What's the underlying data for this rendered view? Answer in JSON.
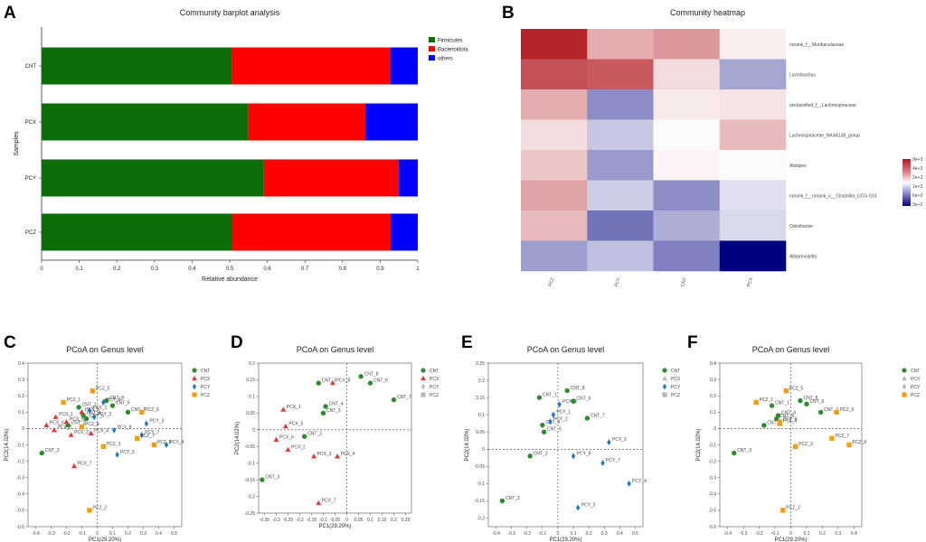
{
  "panels": [
    "A",
    "B",
    "C",
    "D",
    "E",
    "F"
  ],
  "chart_data": [
    {
      "type": "bar",
      "panel": "A",
      "title": "Community barplot analysis",
      "xlabel": "Relative abundance",
      "ylabel": "Samples",
      "xlim": [
        0,
        1
      ],
      "xticks": [
        "0",
        "0.1",
        "0.2",
        "0.3",
        "0.4",
        "0.5",
        "0.6",
        "0.7",
        "0.8",
        "0.9",
        "1"
      ],
      "categories": [
        "CNT",
        "PCX",
        "PCY",
        "PCZ"
      ],
      "series": [
        {
          "name": "Firmicutes",
          "color": "#0b6e0b",
          "values": [
            0.505,
            0.549,
            0.591,
            0.506
          ]
        },
        {
          "name": "Bacteroidota",
          "color": "#ff0000",
          "values": [
            0.422,
            0.312,
            0.358,
            0.422
          ]
        },
        {
          "name": "others",
          "color": "#0000ff",
          "values": [
            0.073,
            0.139,
            0.051,
            0.072
          ]
        }
      ]
    },
    {
      "type": "heatmap",
      "panel": "B",
      "title": "Community heatmap",
      "columns": [
        "PCZ",
        "PCY",
        "CNT",
        "PCX"
      ],
      "rows": [
        "norank_f__Muribaculaceae",
        "Lactobacillus",
        "unclassified_f__Lachnospiraceae",
        "Lachnospiraceae_NK4A136_group",
        "Alistipes",
        "norank_f__norank_o__Clostridia_UCG-014",
        "Odoribacter",
        "Alloprevotella"
      ],
      "values": [
        [
          0.95,
          0.35,
          0.45,
          0.08
        ],
        [
          0.75,
          0.72,
          0.15,
          -0.35
        ],
        [
          0.35,
          -0.45,
          0.1,
          0.12
        ],
        [
          0.15,
          -0.22,
          0.02,
          0.3
        ],
        [
          0.25,
          -0.4,
          0.05,
          0.02
        ],
        [
          0.4,
          -0.2,
          -0.45,
          -0.12
        ],
        [
          0.3,
          -0.55,
          -0.32,
          -0.15
        ],
        [
          -0.38,
          -0.25,
          -0.5,
          -1.0
        ]
      ],
      "colorbar_labels": [
        "9e+3",
        "4e+3",
        "2e+3",
        "1e+3",
        "6e+2",
        "3e+2"
      ]
    },
    {
      "type": "scatter",
      "panel": "C",
      "title": "PCoA on Genus level",
      "xlabel": "PC1(29.20%)",
      "ylabel": "PC2(14.02%)",
      "xlim": [
        -0.45,
        0.55
      ],
      "ylim": [
        -0.6,
        0.4
      ],
      "xticks": [
        -0.4,
        -0.3,
        -0.2,
        -0.1,
        0,
        0.1,
        0.2,
        0.3,
        0.4,
        0.5
      ],
      "yticks": [
        0.4,
        0.3,
        0.2,
        0.1,
        0,
        -0.1,
        -0.2,
        -0.3,
        -0.4,
        -0.5,
        -0.6
      ],
      "legend": [
        "CNT",
        "PCX",
        "PCY",
        "PCZ"
      ],
      "points": [
        {
          "label": "CNT_1",
          "group": "CNT",
          "x": -0.12,
          "y": 0.13
        },
        {
          "label": "CNT_2",
          "group": "CNT",
          "x": -0.19,
          "y": 0.02
        },
        {
          "label": "CNT_3",
          "group": "CNT",
          "x": -0.36,
          "y": -0.15
        },
        {
          "label": "CNT_4",
          "group": "CNT",
          "x": -0.09,
          "y": 0.08
        },
        {
          "label": "CNT_5",
          "group": "CNT",
          "x": -0.07,
          "y": 0.06
        },
        {
          "label": "CNT_6",
          "group": "CNT",
          "x": 0.1,
          "y": 0.14
        },
        {
          "label": "CNT_7",
          "group": "CNT",
          "x": 0.2,
          "y": 0.1
        },
        {
          "label": "CNT_8",
          "group": "CNT",
          "x": 0.06,
          "y": 0.17
        },
        {
          "label": "PCX_1",
          "group": "PCX",
          "x": -0.27,
          "y": 0.07
        },
        {
          "label": "PCX_2",
          "group": "PCX",
          "x": -0.28,
          "y": -0.01
        },
        {
          "label": "PCX_3",
          "group": "PCX",
          "x": -0.17,
          "y": -0.04
        },
        {
          "label": "PCX_4",
          "group": "PCX",
          "x": -0.04,
          "y": -0.03
        },
        {
          "label": "PCX_5",
          "group": "PCX",
          "x": -0.2,
          "y": 0.04
        },
        {
          "label": "PCX_6",
          "group": "PCX",
          "x": -0.33,
          "y": 0.02
        },
        {
          "label": "PCX_7",
          "group": "PCX",
          "x": -0.15,
          "y": -0.23
        },
        {
          "label": "PCX_8",
          "group": "PCX",
          "x": -0.1,
          "y": 0.1
        },
        {
          "label": "PCY_1",
          "group": "PCY",
          "x": -0.05,
          "y": 0.11
        },
        {
          "label": "PCY_2",
          "group": "PCY",
          "x": -0.02,
          "y": 0.07
        },
        {
          "label": "PCY_3",
          "group": "PCY",
          "x": 0.32,
          "y": 0.03
        },
        {
          "label": "PCY_4",
          "group": "PCY",
          "x": 0.45,
          "y": -0.1
        },
        {
          "label": "PCY_5",
          "group": "PCY",
          "x": 0.13,
          "y": -0.16
        },
        {
          "label": "PCY_6",
          "group": "PCY",
          "x": 0.04,
          "y": 0.16
        },
        {
          "label": "PCY_7",
          "group": "PCY",
          "x": 0.29,
          "y": -0.04
        },
        {
          "label": "PCY_8",
          "group": "PCY",
          "x": 0.11,
          "y": -0.01
        },
        {
          "label": "PCZ_1",
          "group": "PCZ",
          "x": -0.22,
          "y": 0.16
        },
        {
          "label": "PCZ_2",
          "group": "PCZ",
          "x": -0.05,
          "y": -0.5
        },
        {
          "label": "PCZ_3",
          "group": "PCZ",
          "x": 0.04,
          "y": -0.11
        },
        {
          "label": "PCZ_4",
          "group": "PCZ",
          "x": -0.1,
          "y": 0.01
        },
        {
          "label": "PCZ_5",
          "group": "PCZ",
          "x": -0.03,
          "y": 0.23
        },
        {
          "label": "PCZ_6",
          "group": "PCZ",
          "x": 0.29,
          "y": 0.1
        },
        {
          "label": "PCZ_7",
          "group": "PCZ",
          "x": 0.26,
          "y": -0.06
        },
        {
          "label": "PCZ_8",
          "group": "PCZ",
          "x": 0.37,
          "y": -0.1
        }
      ]
    },
    {
      "type": "scatter",
      "panel": "D",
      "title": "PCoA on Genus level",
      "xlabel": "PC1(29.20%)",
      "ylabel": "PC2(14.02%)",
      "xlim": [
        -0.375,
        0.275
      ],
      "ylim": [
        -0.25,
        0.2
      ],
      "xticks": [
        -0.35,
        -0.3,
        -0.25,
        -0.2,
        -0.15,
        -0.1,
        -0.05,
        0,
        0.05,
        0.1,
        0.15,
        0.2,
        0.25
      ],
      "yticks": [
        0.2,
        0.15,
        0.1,
        0.05,
        0,
        -0.05,
        -0.1,
        -0.15,
        -0.2,
        -0.25
      ],
      "legend": [
        "CNT",
        "PCX",
        "PCY",
        "PCZ"
      ],
      "points": [
        {
          "label": "CNT_1",
          "group": "CNT",
          "x": -0.12,
          "y": 0.14
        },
        {
          "label": "CNT_2",
          "group": "CNT",
          "x": -0.18,
          "y": -0.02
        },
        {
          "label": "CNT_3",
          "group": "CNT",
          "x": -0.36,
          "y": -0.15
        },
        {
          "label": "CNT_4",
          "group": "CNT",
          "x": -0.09,
          "y": 0.07
        },
        {
          "label": "CNT_5",
          "group": "CNT",
          "x": -0.1,
          "y": 0.05
        },
        {
          "label": "CNT_6",
          "group": "CNT",
          "x": 0.1,
          "y": 0.14
        },
        {
          "label": "CNT_7",
          "group": "CNT",
          "x": 0.2,
          "y": 0.09
        },
        {
          "label": "CNT_8",
          "group": "CNT",
          "x": 0.06,
          "y": 0.16
        },
        {
          "label": "PCX_1",
          "group": "PCX",
          "x": -0.27,
          "y": 0.06
        },
        {
          "label": "PCX_2",
          "group": "PCX",
          "x": -0.25,
          "y": -0.06
        },
        {
          "label": "PCX_3",
          "group": "PCX",
          "x": -0.14,
          "y": -0.08
        },
        {
          "label": "PCX_4",
          "group": "PCX",
          "x": -0.04,
          "y": -0.08
        },
        {
          "label": "PCX_5",
          "group": "PCX",
          "x": -0.26,
          "y": 0.01
        },
        {
          "label": "PCX_6",
          "group": "PCX",
          "x": -0.3,
          "y": -0.03
        },
        {
          "label": "PCX_7",
          "group": "PCX",
          "x": -0.12,
          "y": -0.22
        },
        {
          "label": "PCX_8",
          "group": "PCX",
          "x": -0.06,
          "y": 0.14
        }
      ]
    },
    {
      "type": "scatter",
      "panel": "E",
      "title": "PCoA on Genus level",
      "xlabel": "PC1(29.20%)",
      "ylabel": "PC2(14.02%)",
      "xlim": [
        -0.45,
        0.55
      ],
      "ylim": [
        -0.225,
        0.25
      ],
      "xticks": [
        -0.4,
        -0.3,
        -0.2,
        -0.1,
        0,
        0.1,
        0.2,
        0.3,
        0.4,
        0.5
      ],
      "yticks": [
        0.25,
        0.2,
        0.15,
        0.1,
        0.05,
        0,
        -0.05,
        -0.1,
        -0.15,
        -0.2
      ],
      "legend": [
        "CNT",
        "PCX",
        "PCY",
        "PCZ"
      ],
      "points": [
        {
          "label": "CNT_1",
          "group": "CNT",
          "x": -0.12,
          "y": 0.15
        },
        {
          "label": "CNT_2",
          "group": "CNT",
          "x": -0.18,
          "y": -0.02
        },
        {
          "label": "CNT_3",
          "group": "CNT",
          "x": -0.36,
          "y": -0.15
        },
        {
          "label": "CNT_4",
          "group": "CNT",
          "x": -0.1,
          "y": 0.07
        },
        {
          "label": "CNT_5",
          "group": "CNT",
          "x": -0.09,
          "y": 0.05
        },
        {
          "label": "CNT_6",
          "group": "CNT",
          "x": 0.1,
          "y": 0.14
        },
        {
          "label": "CNT_7",
          "group": "CNT",
          "x": 0.19,
          "y": 0.09
        },
        {
          "label": "CNT_8",
          "group": "CNT",
          "x": 0.06,
          "y": 0.17
        },
        {
          "label": "PCY_1",
          "group": "PCY",
          "x": -0.03,
          "y": 0.1
        },
        {
          "label": "PCY_2",
          "group": "PCY",
          "x": -0.05,
          "y": 0.08
        },
        {
          "label": "PCY_3",
          "group": "PCY",
          "x": 0.33,
          "y": 0.02
        },
        {
          "label": "PCY_4",
          "group": "PCY",
          "x": 0.46,
          "y": -0.1
        },
        {
          "label": "PCY_5",
          "group": "PCY",
          "x": 0.13,
          "y": -0.17
        },
        {
          "label": "PCY_6",
          "group": "PCY",
          "x": 0.01,
          "y": 0.13
        },
        {
          "label": "PCY_7",
          "group": "PCY",
          "x": 0.29,
          "y": -0.04
        },
        {
          "label": "PCY_8",
          "group": "PCY",
          "x": 0.1,
          "y": -0.02
        }
      ]
    },
    {
      "type": "scatter",
      "panel": "F",
      "title": "PCoA on Genus level",
      "xlabel": "PC1(29.20%)",
      "ylabel": "PC2(14.02%)",
      "xlim": [
        -0.45,
        0.45
      ],
      "ylim": [
        -0.6,
        0.4
      ],
      "xticks": [
        -0.4,
        -0.3,
        -0.2,
        -0.1,
        0,
        0.1,
        0.2,
        0.3,
        0.4
      ],
      "yticks": [
        0.4,
        0.3,
        0.2,
        0.1,
        0,
        -0.1,
        -0.2,
        -0.3,
        -0.4,
        -0.5,
        -0.6
      ],
      "legend": [
        "CNT",
        "PCX",
        "PCY",
        "PCZ"
      ],
      "points": [
        {
          "label": "CNT_1",
          "group": "CNT",
          "x": -0.12,
          "y": 0.14
        },
        {
          "label": "CNT_2",
          "group": "CNT",
          "x": -0.17,
          "y": 0.02
        },
        {
          "label": "CNT_3",
          "group": "CNT",
          "x": -0.36,
          "y": -0.15
        },
        {
          "label": "CNT_4",
          "group": "CNT",
          "x": -0.08,
          "y": 0.08
        },
        {
          "label": "CNT_5",
          "group": "CNT",
          "x": -0.09,
          "y": 0.06
        },
        {
          "label": "CNT_6",
          "group": "CNT",
          "x": 0.1,
          "y": 0.15
        },
        {
          "label": "CNT_7",
          "group": "CNT",
          "x": 0.19,
          "y": 0.1
        },
        {
          "label": "CNT_8",
          "group": "CNT",
          "x": 0.06,
          "y": 0.17
        },
        {
          "label": "PCZ_1",
          "group": "PCZ",
          "x": -0.22,
          "y": 0.16
        },
        {
          "label": "PCZ_2",
          "group": "PCZ",
          "x": -0.05,
          "y": -0.5
        },
        {
          "label": "PCZ_3",
          "group": "PCZ",
          "x": 0.03,
          "y": -0.11
        },
        {
          "label": "PCZ_4",
          "group": "PCZ",
          "x": -0.07,
          "y": 0.03
        },
        {
          "label": "PCZ_5",
          "group": "PCZ",
          "x": -0.03,
          "y": 0.23
        },
        {
          "label": "PCZ_6",
          "group": "PCZ",
          "x": -0.07,
          "y": 0.04
        },
        {
          "label": "PCZ_7",
          "group": "PCZ",
          "x": 0.26,
          "y": -0.06
        },
        {
          "label": "PCZ_8",
          "group": "PCZ",
          "x": 0.37,
          "y": -0.1
        },
        {
          "label": "PCZ_9",
          "group": "PCZ",
          "x": 0.29,
          "y": 0.1
        }
      ]
    }
  ],
  "group_styles": {
    "CNT": {
      "color": "#2e8b2e",
      "shape": "circle"
    },
    "PCX": {
      "color": "#e53935",
      "shape": "triangle"
    },
    "PCY": {
      "color": "#1f78c8",
      "shape": "diamond"
    },
    "PCZ": {
      "color": "#f59e0b",
      "shape": "square"
    },
    "legend_gray": "#b8b8b8"
  }
}
